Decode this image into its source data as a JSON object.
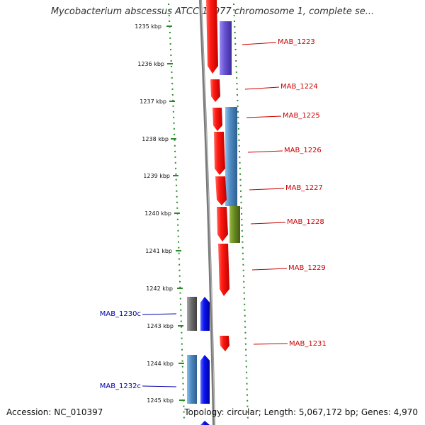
{
  "title": "Mycobacterium abscessus ATCC 19977 chromosome 1, complete se...",
  "footer": {
    "accession": "Accession: NC_010397",
    "summary": "Topology: circular; Length: 5,067,172 bp; Genes: 4,970"
  },
  "ruler": {
    "unit": "kbp",
    "ticks": [
      "1235 kbp",
      "1236 kbp",
      "1237 kbp",
      "1238 kbp",
      "1239 kbp",
      "1240 kbp",
      "1241 kbp",
      "1242 kbp",
      "1243 kbp",
      "1244 kbp",
      "1245 kbp"
    ]
  },
  "genes": [
    {
      "label": "MAB_1223",
      "strand": "+",
      "color": "#e8201e"
    },
    {
      "label": "MAB_1224",
      "strand": "+",
      "color": "#e8201e"
    },
    {
      "label": "MAB_1225",
      "strand": "+",
      "color": "#e8201e"
    },
    {
      "label": "MAB_1226",
      "strand": "+",
      "color": "#e8201e"
    },
    {
      "label": "MAB_1227",
      "strand": "+",
      "color": "#e8201e"
    },
    {
      "label": "MAB_1228",
      "strand": "+",
      "color": "#e8201e"
    },
    {
      "label": "MAB_1229",
      "strand": "+",
      "color": "#e8201e"
    },
    {
      "label": "MAB_1230c",
      "strand": "-",
      "color": "#0a14f0"
    },
    {
      "label": "MAB_1231",
      "strand": "+",
      "color": "#e8201e"
    },
    {
      "label": "MAB_1232c",
      "strand": "-",
      "color": "#0a14f0"
    }
  ],
  "features": [
    {
      "kind": "feature",
      "color": "#6a55d6"
    },
    {
      "kind": "feature",
      "color": "#4f8cc4"
    },
    {
      "kind": "feature",
      "color": "#6b8e23"
    },
    {
      "kind": "feature",
      "color": "#6e6e6e"
    },
    {
      "kind": "feature",
      "color": "#4f8cc4"
    }
  ]
}
